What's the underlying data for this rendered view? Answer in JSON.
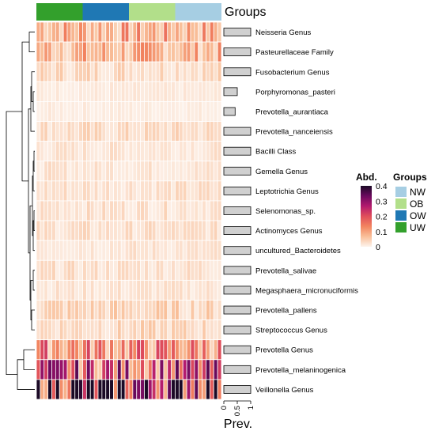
{
  "chart_data": {
    "type": "heatmap",
    "groups_label": "Groups",
    "x_label": "Prev.",
    "x_ticks": [
      "0",
      "0.5",
      "1"
    ],
    "x_range": [
      0,
      1
    ],
    "legend_abd": {
      "title": "Abd.",
      "ticks": [
        "0.4",
        "0.3",
        "0.2",
        "0.1",
        "0"
      ],
      "range": [
        0,
        0.4
      ],
      "colors": [
        "#fdf3ec",
        "#f9c09a",
        "#f2845f",
        "#e04f5a",
        "#b31a6e",
        "#6b0a5e",
        "#1b0a26"
      ]
    },
    "legend_groups": {
      "title": "Groups",
      "items": [
        {
          "name": "NW",
          "color": "#a6cee3"
        },
        {
          "name": "OB",
          "color": "#b2df8a"
        },
        {
          "name": "OW",
          "color": "#1f78b4"
        },
        {
          "name": "UW",
          "color": "#33a02c"
        }
      ]
    },
    "sample_groups": [
      {
        "name": "UW",
        "count": 12
      },
      {
        "name": "OW",
        "count": 12
      },
      {
        "name": "OB",
        "count": 12
      },
      {
        "name": "NW",
        "count": 12
      }
    ],
    "rows": [
      {
        "label": "Neisseria Genus",
        "prevalence": 1.0,
        "mean_abundance": 0.09
      },
      {
        "label": "Pasteurellaceae Family",
        "prevalence": 1.0,
        "mean_abundance": 0.08
      },
      {
        "label": "Fusobacterium Genus",
        "prevalence": 1.0,
        "mean_abundance": 0.035
      },
      {
        "label": "Porphyromonas_pasteri",
        "prevalence": 0.5,
        "mean_abundance": 0.012
      },
      {
        "label": "Prevotella_aurantiaca",
        "prevalence": 0.42,
        "mean_abundance": 0.01
      },
      {
        "label": "Prevotella_nanceiensis",
        "prevalence": 1.0,
        "mean_abundance": 0.03
      },
      {
        "label": "Bacilli Class",
        "prevalence": 1.0,
        "mean_abundance": 0.02
      },
      {
        "label": "Gemella Genus",
        "prevalence": 1.0,
        "mean_abundance": 0.02
      },
      {
        "label": "Leptotrichia Genus",
        "prevalence": 1.0,
        "mean_abundance": 0.025
      },
      {
        "label": "Selenomonas_sp.",
        "prevalence": 1.0,
        "mean_abundance": 0.025
      },
      {
        "label": "Actinomyces Genus",
        "prevalence": 1.0,
        "mean_abundance": 0.025
      },
      {
        "label": "uncultured_Bacteroidetes",
        "prevalence": 1.0,
        "mean_abundance": 0.02
      },
      {
        "label": "Prevotella_salivae",
        "prevalence": 1.0,
        "mean_abundance": 0.025
      },
      {
        "label": "Megasphaera_micronuciformis",
        "prevalence": 1.0,
        "mean_abundance": 0.02
      },
      {
        "label": "Prevotella_pallens",
        "prevalence": 1.0,
        "mean_abundance": 0.04
      },
      {
        "label": "Streptococcus Genus",
        "prevalence": 1.0,
        "mean_abundance": 0.035
      },
      {
        "label": "Prevotella Genus",
        "prevalence": 1.0,
        "mean_abundance": 0.13
      },
      {
        "label": "Prevotella_melaninogenica",
        "prevalence": 1.0,
        "mean_abundance": 0.2
      },
      {
        "label": "Veillonella Genus",
        "prevalence": 1.0,
        "mean_abundance": 0.3
      }
    ]
  }
}
